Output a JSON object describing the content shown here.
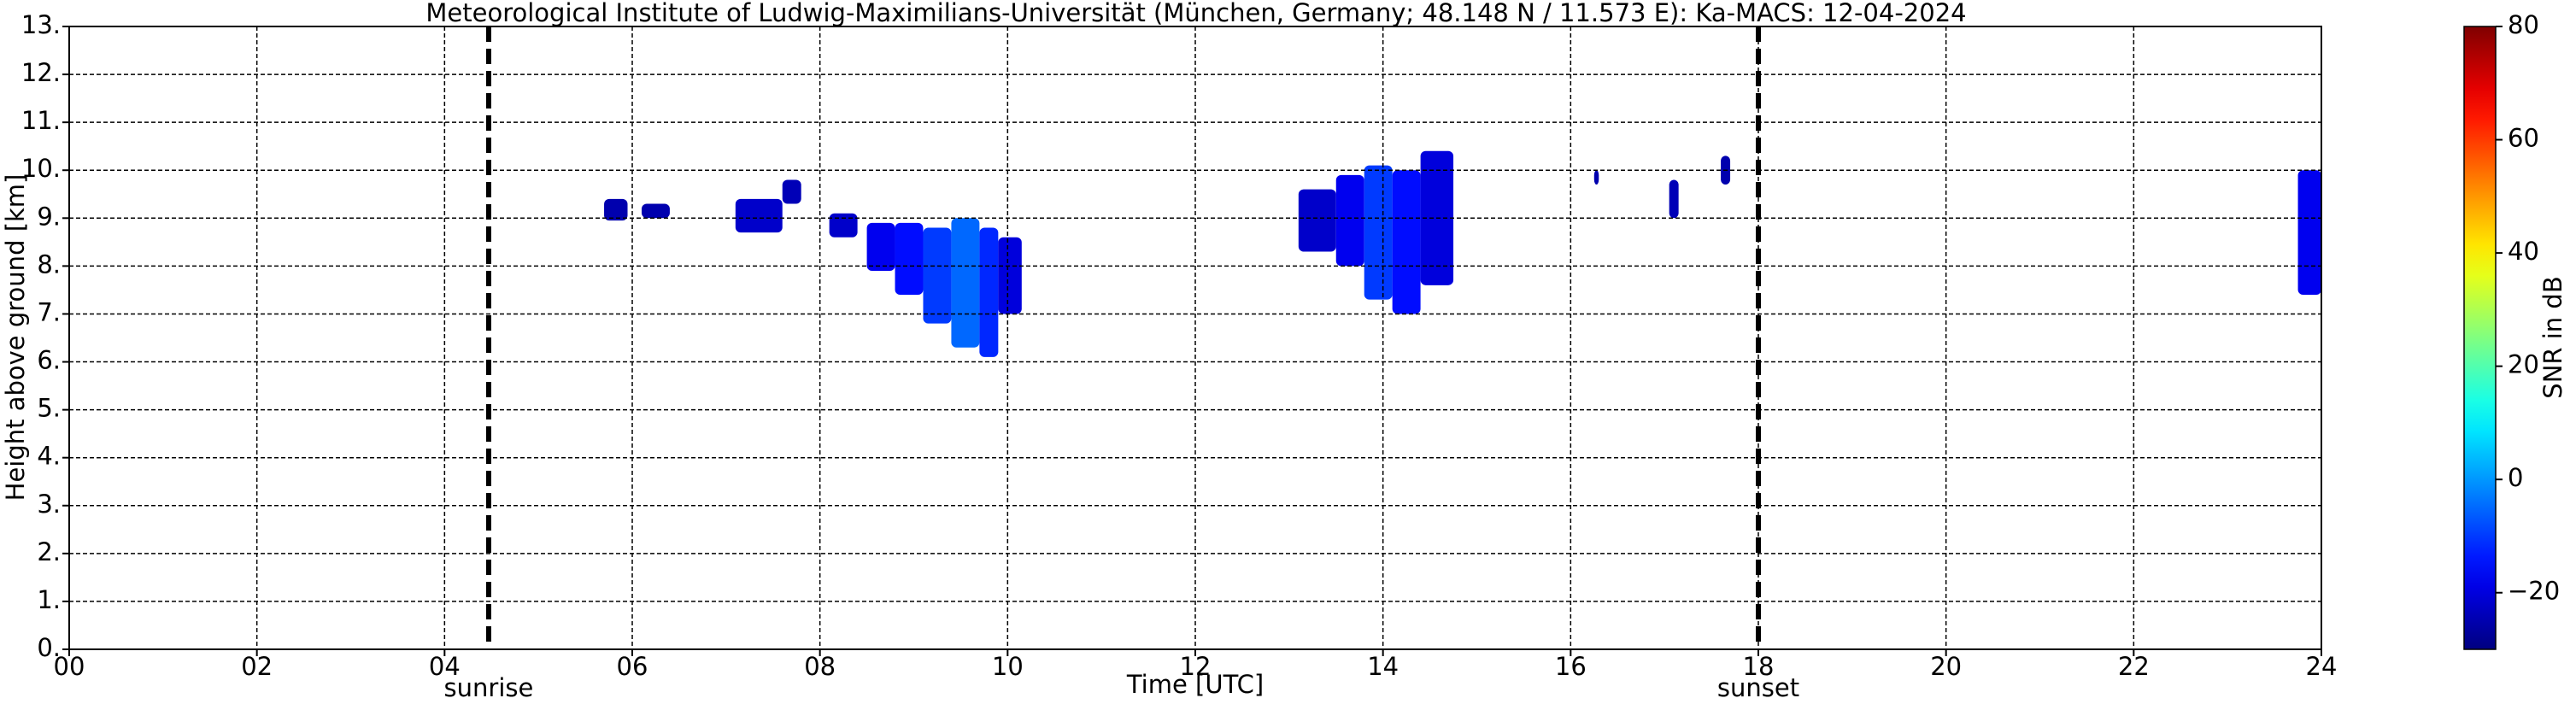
{
  "chart_data": {
    "type": "radar-timeheight",
    "title": "Meteorological Institute of Ludwig-Maximilians-Universität (München, Germany; 48.148 N / 11.573 E):    Ka-MACS: 12-04-2024",
    "x_label": "Time [UTC]",
    "y_label": "Height above ground [km]",
    "colorbar_label": "SNR in dB",
    "xlim": [
      0,
      24
    ],
    "xticks": [
      {
        "value": 0,
        "label": "00"
      },
      {
        "value": 2,
        "label": "02"
      },
      {
        "value": 4,
        "label": "04"
      },
      {
        "value": 6,
        "label": "06"
      },
      {
        "value": 8,
        "label": "08"
      },
      10,
      12,
      14,
      16,
      18,
      20,
      22,
      24
    ],
    "ylim": [
      0,
      13
    ],
    "yticks": [
      {
        "value": 0,
        "label": "0."
      },
      {
        "value": 1,
        "label": "1."
      },
      {
        "value": 2,
        "label": "2."
      },
      {
        "value": 3,
        "label": "3."
      },
      {
        "value": 4,
        "label": "4."
      },
      {
        "value": 5,
        "label": "5."
      },
      {
        "value": 6,
        "label": "6."
      },
      {
        "value": 7,
        "label": "7."
      },
      {
        "value": 8,
        "label": "8."
      },
      {
        "value": 9,
        "label": "9."
      },
      {
        "value": 10,
        "label": "10."
      },
      {
        "value": 11,
        "label": "11."
      },
      {
        "value": 12,
        "label": "12."
      },
      {
        "value": 13,
        "label": "13."
      }
    ],
    "clim": [
      -30,
      80
    ],
    "cticks": [
      {
        "value": -20,
        "label": "−20"
      },
      0,
      20,
      40,
      60,
      80
    ],
    "colormap": "jet",
    "grid": true,
    "annotations": [
      {
        "label": "sunrise",
        "x": 4.47
      },
      {
        "label": "sunset",
        "x": 18.0
      }
    ],
    "echoes": [
      [
        5.7,
        5.95,
        8.95,
        9.4,
        -25
      ],
      [
        6.1,
        6.4,
        9.0,
        9.3,
        -25
      ],
      [
        7.1,
        7.6,
        8.7,
        9.4,
        -22
      ],
      [
        7.6,
        7.8,
        9.3,
        9.8,
        -24
      ],
      [
        8.1,
        8.4,
        8.6,
        9.1,
        -22
      ],
      [
        8.5,
        8.8,
        7.9,
        8.9,
        -18
      ],
      [
        8.8,
        9.1,
        7.4,
        8.9,
        -15
      ],
      [
        9.1,
        9.4,
        6.8,
        8.8,
        -10
      ],
      [
        9.4,
        9.7,
        6.3,
        9.0,
        -5
      ],
      [
        9.7,
        9.9,
        6.1,
        8.8,
        -12
      ],
      [
        9.9,
        10.15,
        7.0,
        8.6,
        -20
      ],
      [
        13.1,
        13.5,
        8.3,
        9.6,
        -22
      ],
      [
        13.5,
        13.8,
        8.0,
        9.9,
        -18
      ],
      [
        13.8,
        14.1,
        7.3,
        10.1,
        -10
      ],
      [
        14.1,
        14.4,
        7.0,
        10.0,
        -15
      ],
      [
        14.4,
        14.75,
        7.6,
        10.4,
        -20
      ],
      [
        16.25,
        16.3,
        9.7,
        10.0,
        -25
      ],
      [
        17.05,
        17.15,
        9.0,
        9.8,
        -24
      ],
      [
        17.6,
        17.7,
        9.7,
        10.3,
        -25
      ],
      [
        23.75,
        24,
        7.4,
        10.0,
        -18
      ]
    ]
  }
}
